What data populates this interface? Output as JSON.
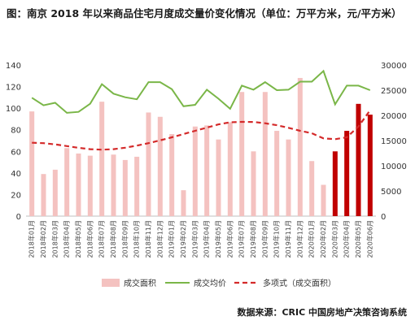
{
  "title": "图：南京 2018 年以来商品住宅月度成交量价变化情况（单位：万平方米，元/平方米）",
  "source": "数据来源：CRIC 中国房地产决策咨询系统",
  "chart_data": {
    "type": "bar",
    "categories": [
      "2018年01月",
      "2018年02月",
      "2018年03月",
      "2018年04月",
      "2018年05月",
      "2018年06月",
      "2018年07月",
      "2018年08月",
      "2018年09月",
      "2018年10月",
      "2018年11月",
      "2018年12月",
      "2019年01月",
      "2019年02月",
      "2019年03月",
      "2019年04月",
      "2019年05月",
      "2019年06月",
      "2019年07月",
      "2019年08月",
      "2019年09月",
      "2019年10月",
      "2019年11月",
      "2019年12月",
      "2020年01月",
      "2020年02月",
      "2020年03月",
      "2020年04月",
      "2020年05月",
      "2020年06月"
    ],
    "left_axis": {
      "ylim": [
        0,
        140
      ],
      "ticks": [
        0,
        20,
        40,
        60,
        80,
        100,
        120,
        140
      ]
    },
    "right_axis": {
      "ylim": [
        0,
        30000
      ],
      "ticks": [
        0,
        5000,
        10000,
        15000,
        20000,
        25000,
        30000
      ]
    },
    "highlight_from_index": 26,
    "colors": {
      "bar": "#f4c2c0",
      "bar_highlight": "#c00000",
      "price_line": "#7ab648",
      "trend": "#d42a2a",
      "axis": "#bfbfbf"
    },
    "series": [
      {
        "name": "成交面积",
        "kind": "bar",
        "axis": "left",
        "values": [
          97,
          39,
          43,
          63,
          58,
          56,
          106,
          57,
          52,
          55,
          96,
          92,
          76,
          24,
          83,
          84,
          71,
          87,
          115,
          60,
          115,
          79,
          71,
          128,
          51,
          29,
          60,
          79,
          104,
          94
        ]
      },
      {
        "name": "成交均价",
        "kind": "line",
        "axis": "right",
        "values": [
          23500,
          22000,
          22500,
          20500,
          20700,
          22300,
          26200,
          24300,
          23600,
          23200,
          26600,
          26600,
          25200,
          21800,
          22100,
          25100,
          23300,
          21300,
          25900,
          25100,
          26600,
          25000,
          25100,
          26700,
          26700,
          28800,
          22200,
          25900,
          25900,
          25000
        ]
      },
      {
        "name": "多项式（成交面积）",
        "kind": "trend",
        "axis": "left",
        "values": [
          68,
          67.6,
          66.5,
          64.9,
          63.3,
          62,
          61.6,
          62,
          63.4,
          65.3,
          67.6,
          70.2,
          73,
          76,
          79,
          82,
          85,
          86.9,
          87.3,
          87.2,
          86,
          84.2,
          81.8,
          79,
          76.8,
          72,
          71.3,
          73,
          83,
          98
        ]
      }
    ]
  }
}
